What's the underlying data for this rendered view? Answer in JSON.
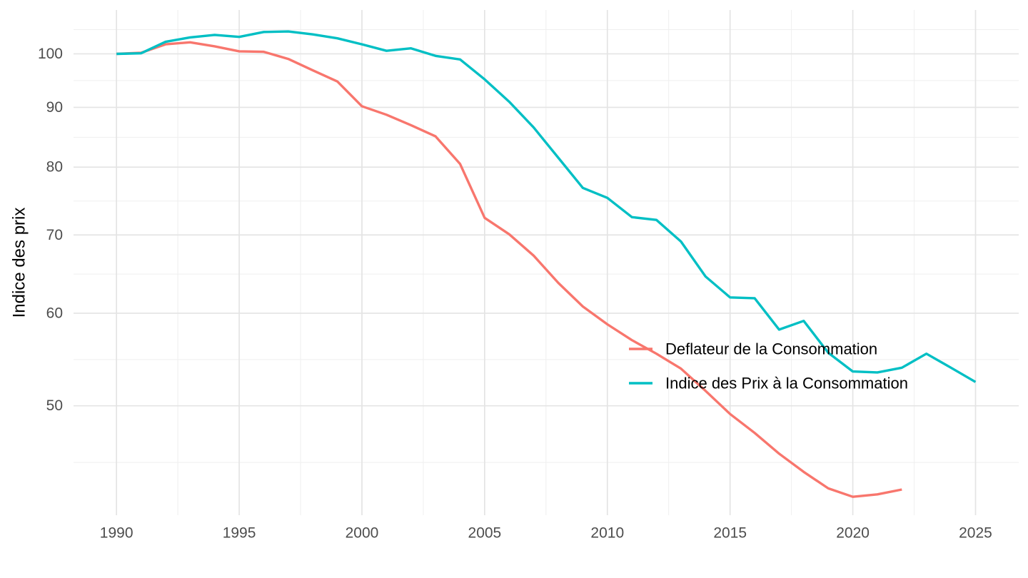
{
  "chart_data": {
    "type": "line",
    "title": "",
    "xlabel": "",
    "ylabel": "Indice des prix",
    "y_scale": "log10",
    "grid": true,
    "legend_position": "inside-right-middle",
    "xlim": [
      1988.25,
      2026.76
    ],
    "ylim": [
      40.31,
      109.02
    ],
    "x_ticks": [
      1990,
      1995,
      2000,
      2005,
      2010,
      2015,
      2020,
      2025
    ],
    "y_ticks": [
      100,
      90,
      80,
      70,
      60,
      50
    ],
    "x_minor_gridlines": [
      1992.5,
      1997.5,
      2002.5,
      2007.5,
      2012.5,
      2017.5,
      2022.5
    ],
    "y_minor_gridlines": [
      104.88,
      94.87,
      84.85,
      74.83,
      64.81,
      54.77,
      44.72
    ],
    "series": [
      {
        "name": "Deflateur de la Consommation",
        "color": "#F8766D",
        "x": [
          1990,
          1991,
          1992,
          1993,
          1994,
          1995,
          1996,
          1997,
          1998,
          1999,
          2000,
          2001,
          2002,
          2003,
          2004,
          2005,
          2006,
          2007,
          2008,
          2009,
          2010,
          2011,
          2012,
          2013,
          2014,
          2015,
          2016,
          2017,
          2018,
          2019,
          2020,
          2021,
          2022
        ],
        "values": [
          100.0,
          100.2,
          101.9,
          102.3,
          101.5,
          100.5,
          100.4,
          99.0,
          96.8,
          94.7,
          90.2,
          88.7,
          86.9,
          85.0,
          80.5,
          72.4,
          70.1,
          67.2,
          63.7,
          60.8,
          58.7,
          56.9,
          55.4,
          53.8,
          51.5,
          49.2,
          47.4,
          45.5,
          43.9,
          42.5,
          41.8,
          42.0,
          42.4
        ]
      },
      {
        "name": "Indice des Prix à la Consommation",
        "color": "#00BFC4",
        "x": [
          1990,
          1991,
          1992,
          1993,
          1994,
          1995,
          1996,
          1997,
          1998,
          1999,
          2000,
          2001,
          2002,
          2003,
          2004,
          2005,
          2006,
          2007,
          2008,
          2009,
          2010,
          2011,
          2012,
          2013,
          2014,
          2015,
          2016,
          2017,
          2018,
          2019,
          2020,
          2021,
          2022,
          2023,
          2024,
          2025
        ],
        "values": [
          100.0,
          100.1,
          102.4,
          103.3,
          103.8,
          103.4,
          104.4,
          104.5,
          103.9,
          103.1,
          101.9,
          100.6,
          101.1,
          99.6,
          98.9,
          95.1,
          91.0,
          86.5,
          81.5,
          76.8,
          75.3,
          72.5,
          72.1,
          69.1,
          64.5,
          61.9,
          61.8,
          58.1,
          59.1,
          55.5,
          53.5,
          53.4,
          53.9,
          55.4,
          53.9,
          52.4
        ]
      }
    ],
    "legend": {
      "items": [
        {
          "label": "Deflateur de la Consommation",
          "color": "#F8766D"
        },
        {
          "label": "Indice des Prix à la Consommation",
          "color": "#00BFC4"
        }
      ]
    }
  }
}
